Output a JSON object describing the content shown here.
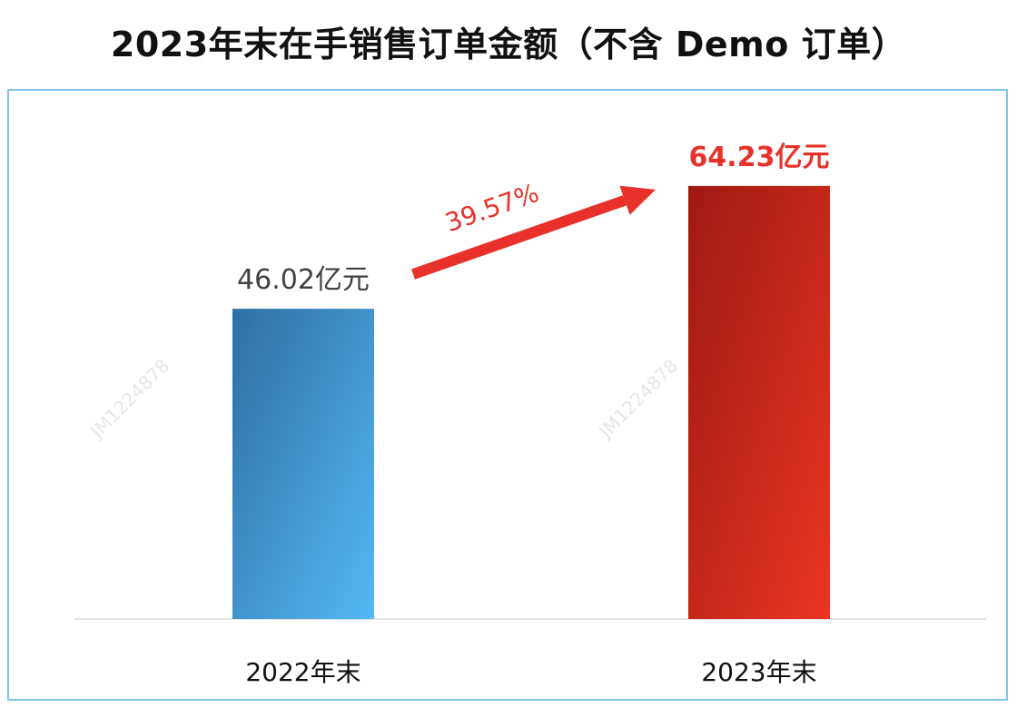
{
  "title": "2023年末在手销售订单金额（不含 Demo 订单）",
  "watermark": "JM1224878",
  "chart_data": {
    "type": "bar",
    "categories": [
      "2022年末",
      "2023年末"
    ],
    "values": [
      46.02,
      64.23
    ],
    "unit": "亿元",
    "data_labels": [
      "46.02亿元",
      "64.23亿元"
    ],
    "ylim": [
      0,
      70
    ],
    "grid": false,
    "legend": "none",
    "annotation": {
      "text": "39.57%",
      "from": "2022年末",
      "to": "2023年末",
      "color": "#e8312a"
    },
    "colors": {
      "bar_2022": [
        "#2e6ea3",
        "#55b8f4"
      ],
      "bar_2023": [
        "#9e1a12",
        "#ea3522"
      ],
      "label_2022": "#404040",
      "label_2023": "#e8312a",
      "axis": "#d9d9d9",
      "frame": "#7fc4e8"
    }
  }
}
